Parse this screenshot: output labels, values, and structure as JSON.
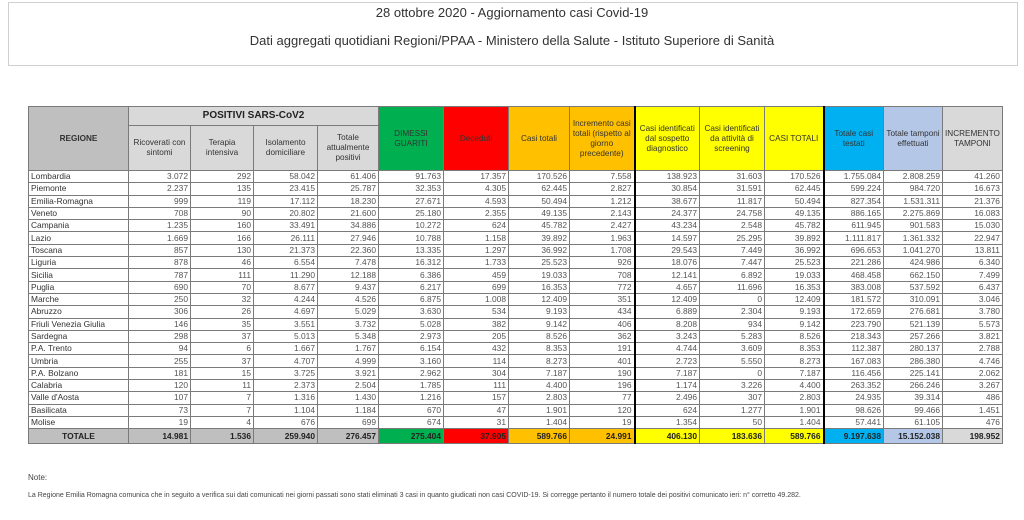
{
  "header": {
    "title": "28 ottobre 2020 - Aggiornamento casi Covid-19",
    "subtitle": "Dati aggregati quotidiani Regioni/PPAA - Ministero della Salute - Istituto Superiore di Sanità"
  },
  "table": {
    "region_header": "REGIONE",
    "group_header": "POSITIVI SARS-CoV2",
    "columns": [
      "Ricoverati con sintomi",
      "Terapia intensiva",
      "Isolamento domiciliare",
      "Totale attualmente positivi",
      "DIMESSI GUARITI",
      "Deceduti",
      "Casi totali",
      "Incremento casi totali (rispetto al giorno precedente)",
      "Casi identificati dal sospetto diagnostico",
      "Casi identificati da attività di screening",
      "CASI TOTALI",
      "Totale casi testati",
      "Totale tamponi effettuati",
      "INCREMENTO TAMPONI"
    ],
    "rows": [
      [
        "Lombardia",
        "3.072",
        "292",
        "58.042",
        "61.406",
        "91.763",
        "17.357",
        "170.526",
        "7.558",
        "138.923",
        "31.603",
        "170.526",
        "1.755.084",
        "2.808.259",
        "41.260"
      ],
      [
        "Piemonte",
        "2.237",
        "135",
        "23.415",
        "25.787",
        "32.353",
        "4.305",
        "62.445",
        "2.827",
        "30.854",
        "31.591",
        "62.445",
        "599.224",
        "984.720",
        "16.673"
      ],
      [
        "Emilia-Romagna",
        "999",
        "119",
        "17.112",
        "18.230",
        "27.671",
        "4.593",
        "50.494",
        "1.212",
        "38.677",
        "11.817",
        "50.494",
        "827.354",
        "1.531.311",
        "21.376"
      ],
      [
        "Veneto",
        "708",
        "90",
        "20.802",
        "21.600",
        "25.180",
        "2.355",
        "49.135",
        "2.143",
        "24.377",
        "24.758",
        "49.135",
        "886.165",
        "2.275.869",
        "16.083"
      ],
      [
        "Campania",
        "1.235",
        "160",
        "33.491",
        "34.886",
        "10.272",
        "624",
        "45.782",
        "2.427",
        "43.234",
        "2.548",
        "45.782",
        "611.945",
        "901.583",
        "15.030"
      ],
      [
        "Lazio",
        "1.669",
        "166",
        "26.111",
        "27.946",
        "10.788",
        "1.158",
        "39.892",
        "1.963",
        "14.597",
        "25.295",
        "39.892",
        "1.111.817",
        "1.361.332",
        "22.947"
      ],
      [
        "Toscana",
        "857",
        "130",
        "21.373",
        "22.360",
        "13.335",
        "1.297",
        "36.992",
        "1.708",
        "29.543",
        "7.449",
        "36.992",
        "696.653",
        "1.041.270",
        "13.811"
      ],
      [
        "Liguria",
        "878",
        "46",
        "6.554",
        "7.478",
        "16.312",
        "1.733",
        "25.523",
        "926",
        "18.076",
        "7.447",
        "25.523",
        "221.286",
        "424.986",
        "6.340"
      ],
      [
        "Sicilia",
        "787",
        "111",
        "11.290",
        "12.188",
        "6.386",
        "459",
        "19.033",
        "708",
        "12.141",
        "6.892",
        "19.033",
        "468.458",
        "662.150",
        "7.499"
      ],
      [
        "Puglia",
        "690",
        "70",
        "8.677",
        "9.437",
        "6.217",
        "699",
        "16.353",
        "772",
        "4.657",
        "11.696",
        "16.353",
        "383.008",
        "537.592",
        "6.437"
      ],
      [
        "Marche",
        "250",
        "32",
        "4.244",
        "4.526",
        "6.875",
        "1.008",
        "12.409",
        "351",
        "12.409",
        "0",
        "12.409",
        "181.572",
        "310.091",
        "3.046"
      ],
      [
        "Abruzzo",
        "306",
        "26",
        "4.697",
        "5.029",
        "3.630",
        "534",
        "9.193",
        "434",
        "6.889",
        "2.304",
        "9.193",
        "172.659",
        "276.681",
        "3.780"
      ],
      [
        "Friuli Venezia Giulia",
        "146",
        "35",
        "3.551",
        "3.732",
        "5.028",
        "382",
        "9.142",
        "406",
        "8.208",
        "934",
        "9.142",
        "223.790",
        "521.139",
        "5.573"
      ],
      [
        "Sardegna",
        "298",
        "37",
        "5.013",
        "5.348",
        "2.973",
        "205",
        "8.526",
        "362",
        "3.243",
        "5.283",
        "8.526",
        "218.343",
        "257.266",
        "3.821"
      ],
      [
        "P.A. Trento",
        "94",
        "6",
        "1.667",
        "1.767",
        "6.154",
        "432",
        "8.353",
        "191",
        "4.744",
        "3.609",
        "8.353",
        "112.387",
        "280.137",
        "2.788"
      ],
      [
        "Umbria",
        "255",
        "37",
        "4.707",
        "4.999",
        "3.160",
        "114",
        "8.273",
        "401",
        "2.723",
        "5.550",
        "8.273",
        "167.083",
        "286.380",
        "4.746"
      ],
      [
        "P.A. Bolzano",
        "181",
        "15",
        "3.725",
        "3.921",
        "2.962",
        "304",
        "7.187",
        "190",
        "7.187",
        "0",
        "7.187",
        "116.456",
        "225.141",
        "2.062"
      ],
      [
        "Calabria",
        "120",
        "11",
        "2.373",
        "2.504",
        "1.785",
        "111",
        "4.400",
        "196",
        "1.174",
        "3.226",
        "4.400",
        "263.352",
        "266.246",
        "3.267"
      ],
      [
        "Valle d'Aosta",
        "107",
        "7",
        "1.316",
        "1.430",
        "1.216",
        "157",
        "2.803",
        "77",
        "2.496",
        "307",
        "2.803",
        "24.935",
        "39.314",
        "486"
      ],
      [
        "Basilicata",
        "73",
        "7",
        "1.104",
        "1.184",
        "670",
        "47",
        "1.901",
        "120",
        "624",
        "1.277",
        "1.901",
        "98.626",
        "99.466",
        "1.451"
      ],
      [
        "Molise",
        "19",
        "4",
        "676",
        "699",
        "674",
        "31",
        "1.404",
        "19",
        "1.354",
        "50",
        "1.404",
        "57.441",
        "61.105",
        "476"
      ]
    ],
    "total": [
      "TOTALE",
      "14.981",
      "1.536",
      "259.940",
      "276.457",
      "275.404",
      "37.905",
      "589.766",
      "24.991",
      "406.130",
      "183.636",
      "589.766",
      "9.197.638",
      "15.152.038",
      "198.952"
    ]
  },
  "colors": {
    "dimessi": "#00b050",
    "deceduti": "#ff0000",
    "casi": "#ffc000",
    "identificati": "#ffff00",
    "testati": "#00b0f0",
    "tamponi": "#b4c7e7",
    "incremento": "#d9d9d9"
  },
  "notes": {
    "label": "Note:",
    "text": "La Regione Emilia Romagna comunica che in seguito a verifica sui dati comunicati nei giorni passati sono stati eliminati 3 casi in quanto giudicati non casi COVID-19. Si corregge pertanto il numero totale dei positivi comunicato ieri: n° corretto 49.282."
  }
}
